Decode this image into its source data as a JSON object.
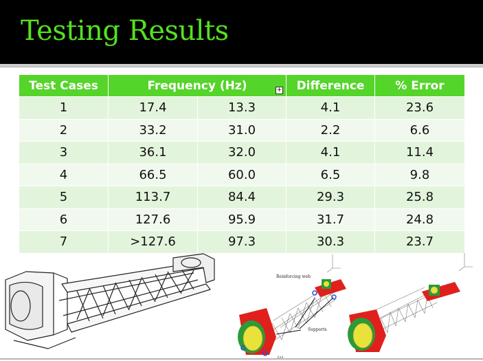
{
  "slide": {
    "title": "Testing Results"
  },
  "table": {
    "headers": {
      "test_cases": "Test Cases",
      "frequency": "Frequency (Hz)",
      "difference": "Difference",
      "error": "% Error",
      "expand_glyph": "+"
    },
    "rows": [
      {
        "case": "1",
        "f1": "17.4",
        "f2": "13.3",
        "diff": "4.1",
        "err": "23.6"
      },
      {
        "case": "2",
        "f1": "33.2",
        "f2": "31.0",
        "diff": "2.2",
        "err": "6.6"
      },
      {
        "case": "3",
        "f1": "36.1",
        "f2": "32.0",
        "diff": "4.1",
        "err": "11.4"
      },
      {
        "case": "4",
        "f1": "66.5",
        "f2": "60.0",
        "diff": "6.5",
        "err": "9.8"
      },
      {
        "case": "5",
        "f1": "113.7",
        "f2": "84.4",
        "diff": "29.3",
        "err": "25.8"
      },
      {
        "case": "6",
        "f1": "127.6",
        "f2": "95.9",
        "diff": "31.7",
        "err": "24.8"
      },
      {
        "case": "7",
        "f1": ">127.6",
        "f2": "97.3",
        "diff": "30.3",
        "err": "23.7"
      }
    ]
  },
  "figure": {
    "annotation_web": "Reinforcing web",
    "annotation_supports": "Supports",
    "annotation_label": "(a)"
  },
  "colors": {
    "title": "#54e21e",
    "header_bg": "#55d42a",
    "row_even": "#e3f4dc",
    "row_odd": "#f1f9ee",
    "fea_red": "#e0201c",
    "fea_yellow": "#e8e23a",
    "fea_green": "#2c9a3a"
  }
}
